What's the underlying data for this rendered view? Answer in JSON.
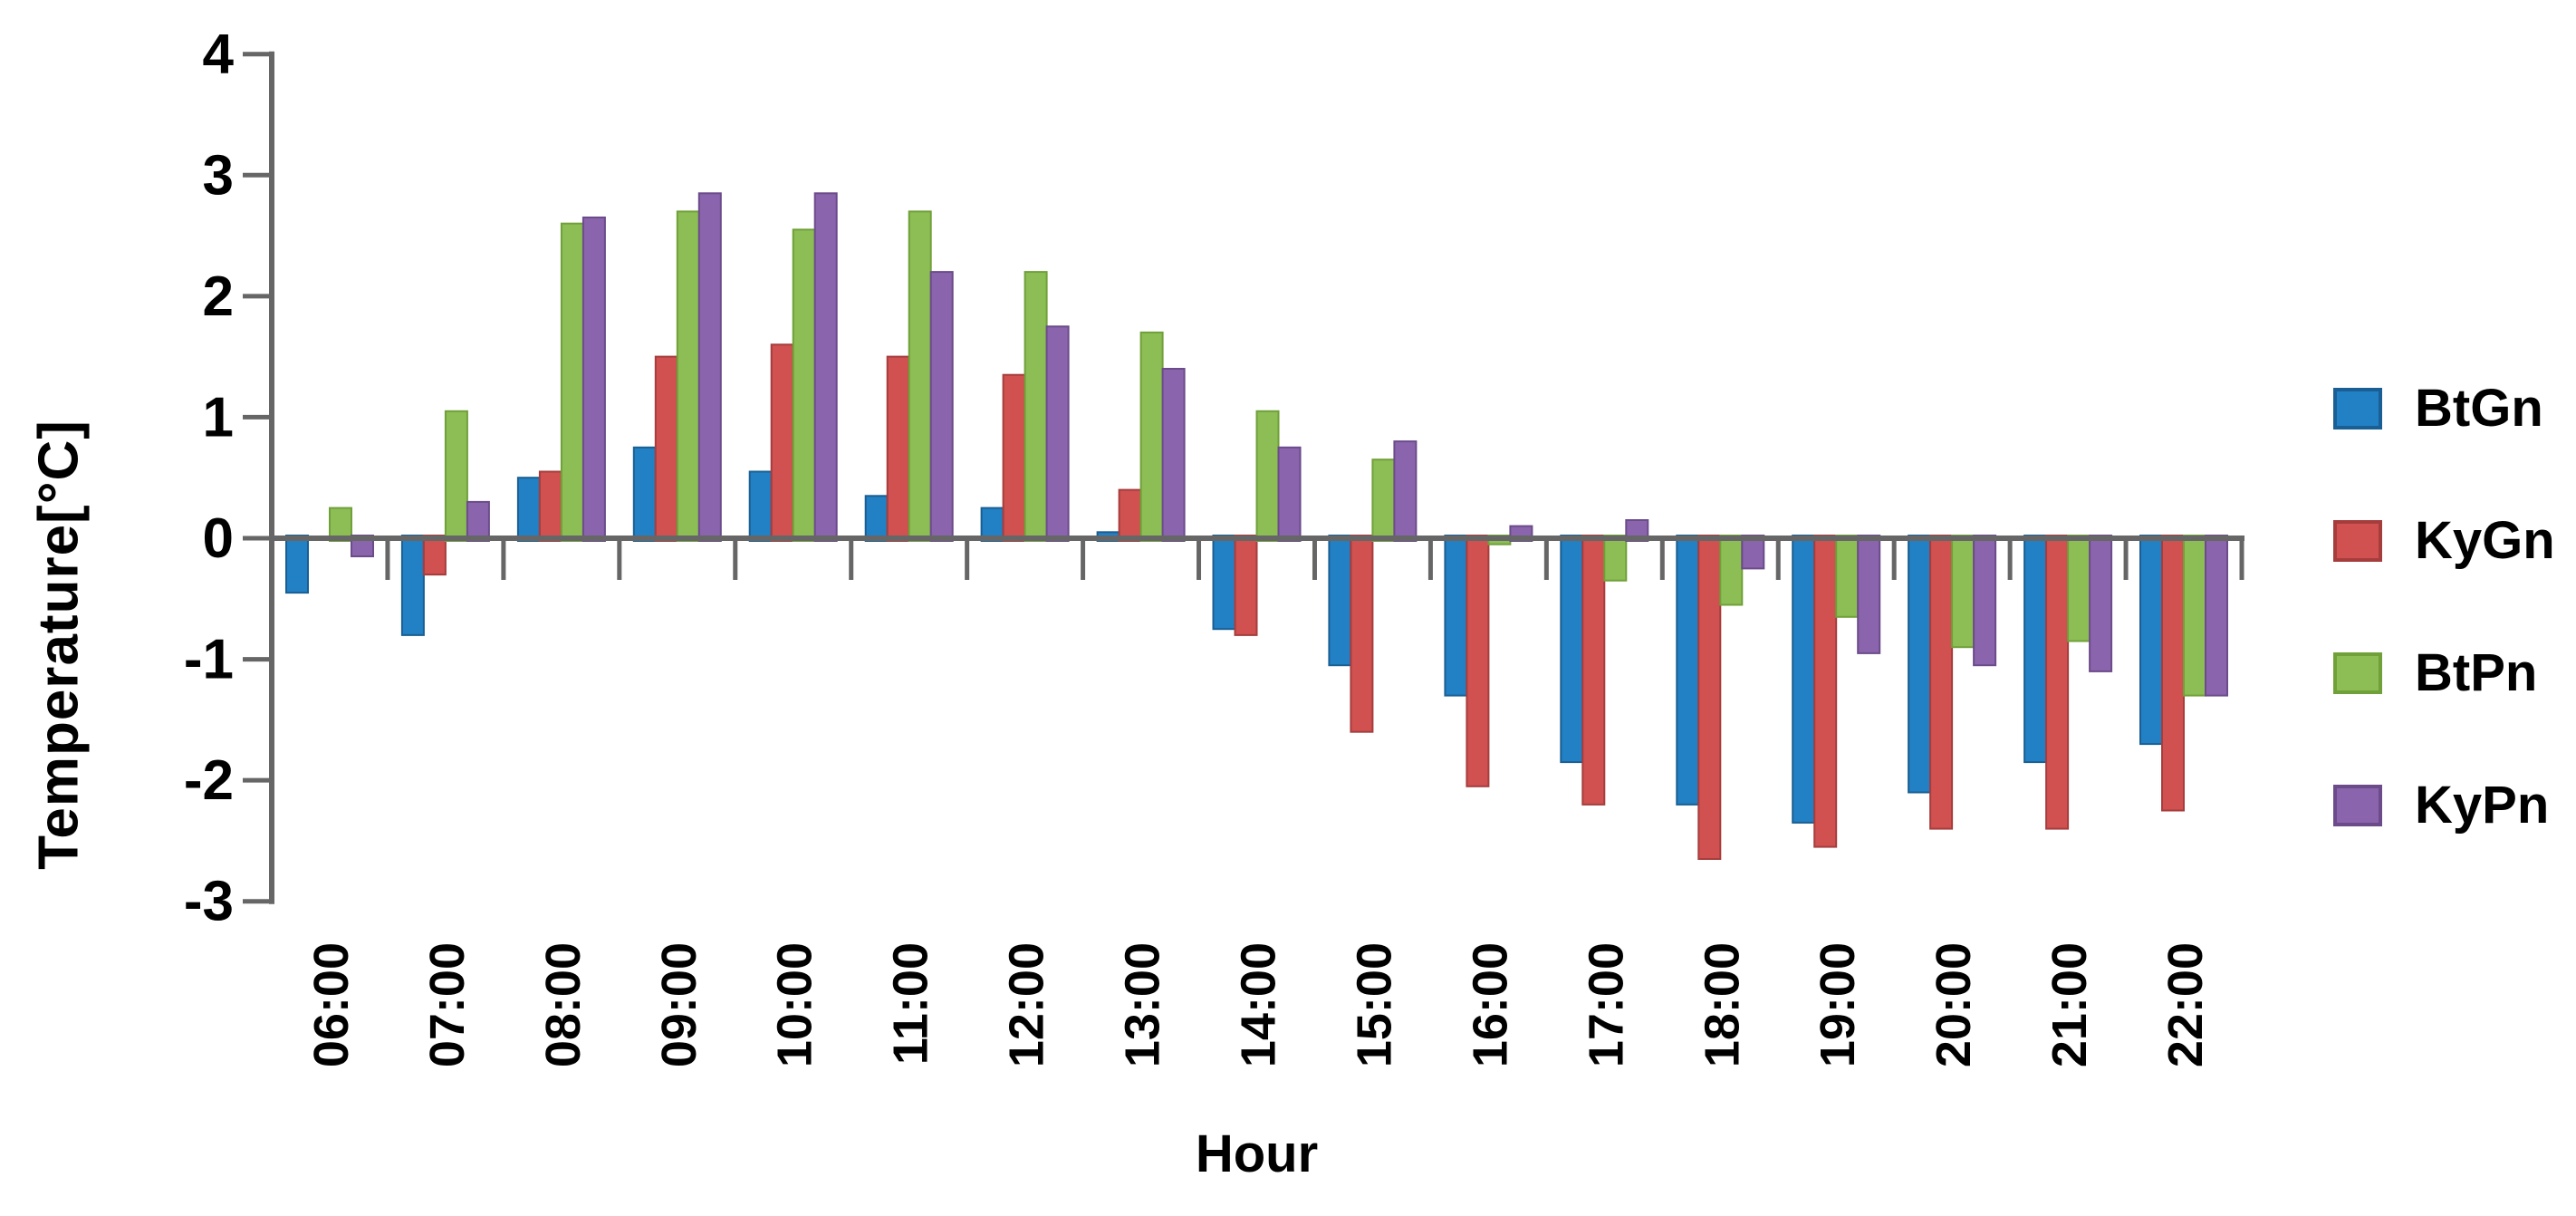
{
  "chart_data": {
    "type": "bar",
    "title": "",
    "xlabel": "Hour",
    "ylabel": "Temperature[°C]",
    "ylim": [
      -3,
      4
    ],
    "yticks": [
      4,
      3,
      2,
      1,
      0,
      -1,
      -2,
      -3
    ],
    "grid": false,
    "legend_position": "right",
    "axis_color": "#666666",
    "categories": [
      "06:00",
      "07:00",
      "08:00",
      "09:00",
      "10:00",
      "11:00",
      "12:00",
      "13:00",
      "14:00",
      "15:00",
      "16:00",
      "17:00",
      "18:00",
      "19:00",
      "20:00",
      "21:00",
      "22:00"
    ],
    "series": [
      {
        "name": "BtGn",
        "color": "#2280C4",
        "border": "#1A5F93",
        "values": [
          -0.45,
          -0.8,
          0.5,
          0.75,
          0.55,
          0.35,
          0.25,
          0.05,
          -0.75,
          -1.05,
          -1.3,
          -1.85,
          -2.2,
          -2.35,
          -2.1,
          -1.85,
          -1.7
        ]
      },
      {
        "name": "KyGn",
        "color": "#D15050",
        "border": "#A63D3D",
        "values": [
          0,
          -0.3,
          0.55,
          1.5,
          1.6,
          1.5,
          1.35,
          0.4,
          -0.8,
          -1.6,
          -2.05,
          -2.2,
          -2.65,
          -2.55,
          -2.4,
          -2.4,
          -2.25
        ]
      },
      {
        "name": "BtPn",
        "color": "#8CBE55",
        "border": "#70A039",
        "values": [
          0.25,
          1.05,
          2.6,
          2.7,
          2.55,
          2.7,
          2.2,
          1.7,
          1.05,
          0.65,
          -0.05,
          -0.35,
          -0.55,
          -0.65,
          -0.9,
          -0.85,
          -1.3
        ]
      },
      {
        "name": "KyPn",
        "color": "#8A64AC",
        "border": "#6B4B8A",
        "values": [
          -0.15,
          0.3,
          2.65,
          2.85,
          2.85,
          2.2,
          1.75,
          1.4,
          0.75,
          0.8,
          0.1,
          0.15,
          -0.25,
          -0.95,
          -1.05,
          -1.1,
          -1.3
        ]
      }
    ]
  }
}
